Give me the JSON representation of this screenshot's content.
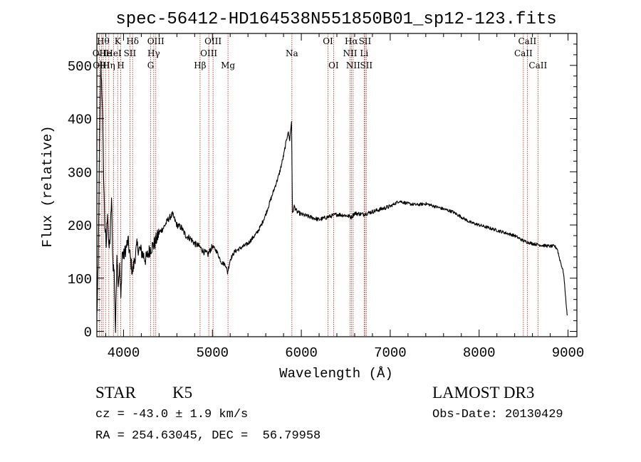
{
  "chart_data": {
    "type": "line",
    "title": "spec-56412-HD164538N551850B01_sp12-123.fits",
    "xlabel": "Wavelength (Å)",
    "ylabel": "Flux (relative)",
    "xlim": [
      3700,
      9100
    ],
    "ylim": [
      -10,
      560
    ],
    "xticks": [
      4000,
      5000,
      6000,
      7000,
      8000,
      9000
    ],
    "yticks": [
      0,
      100,
      200,
      300,
      400,
      500
    ],
    "x_minor_step": 200,
    "y_minor_step": 20,
    "series": [
      {
        "name": "spectrum",
        "x": [
          3700,
          3715,
          3730,
          3745,
          3760,
          3775,
          3790,
          3805,
          3820,
          3835,
          3850,
          3865,
          3880,
          3895,
          3910,
          3925,
          3940,
          3955,
          3970,
          3985,
          4000,
          4050,
          4100,
          4150,
          4200,
          4250,
          4300,
          4350,
          4400,
          4450,
          4500,
          4550,
          4600,
          4650,
          4700,
          4750,
          4800,
          4850,
          4900,
          4950,
          5000,
          5050,
          5100,
          5150,
          5170,
          5200,
          5250,
          5300,
          5350,
          5400,
          5450,
          5500,
          5550,
          5600,
          5650,
          5700,
          5750,
          5800,
          5850,
          5870,
          5890,
          5900,
          5920,
          5950,
          6000,
          6100,
          6200,
          6300,
          6400,
          6500,
          6563,
          6600,
          6700,
          6800,
          6900,
          7000,
          7100,
          7200,
          7300,
          7400,
          7500,
          7600,
          7700,
          7800,
          7900,
          8000,
          8100,
          8200,
          8300,
          8400,
          8500,
          8600,
          8700,
          8800,
          8850,
          8880,
          8900,
          8950,
          8990
        ],
        "y": [
          30,
          120,
          350,
          500,
          440,
          300,
          200,
          160,
          230,
          150,
          180,
          250,
          130,
          110,
          0,
          150,
          90,
          120,
          60,
          150,
          140,
          170,
          110,
          160,
          150,
          135,
          155,
          165,
          185,
          195,
          210,
          220,
          200,
          195,
          180,
          175,
          165,
          160,
          150,
          145,
          160,
          150,
          130,
          125,
          110,
          135,
          150,
          155,
          160,
          165,
          175,
          185,
          200,
          220,
          245,
          270,
          295,
          330,
          375,
          360,
          395,
          220,
          235,
          225,
          220,
          215,
          210,
          215,
          220,
          218,
          215,
          222,
          220,
          225,
          230,
          235,
          245,
          240,
          238,
          240,
          235,
          230,
          225,
          215,
          205,
          200,
          195,
          190,
          185,
          180,
          170,
          165,
          162,
          160,
          160,
          155,
          140,
          110,
          30
        ]
      }
    ],
    "reference_lines": [
      {
        "x": 3727,
        "label": "OII",
        "row": 1
      },
      {
        "x": 3750,
        "label": "OIII",
        "row": 2
      },
      {
        "x": 3771,
        "label": "Hθ",
        "row": 0
      },
      {
        "x": 3798,
        "label": "He",
        "row": 1
      },
      {
        "x": 3835,
        "label": "Hη",
        "row": 2
      },
      {
        "x": 3889,
        "label": "HeI",
        "row": 1
      },
      {
        "x": 3934,
        "label": "K",
        "row": 0
      },
      {
        "x": 3969,
        "label": "H",
        "row": 2
      },
      {
        "x": 4072,
        "label": "SII",
        "row": 1
      },
      {
        "x": 4102,
        "label": "Hδ",
        "row": 0
      },
      {
        "x": 4305,
        "label": "G",
        "row": 2
      },
      {
        "x": 4340,
        "label": "Hγ",
        "row": 1
      },
      {
        "x": 4363,
        "label": "OIII",
        "row": 0
      },
      {
        "x": 4861,
        "label": "Hβ",
        "row": 2
      },
      {
        "x": 4959,
        "label": "OIII",
        "row": 1
      },
      {
        "x": 5007,
        "label": "OIII",
        "row": 0
      },
      {
        "x": 5175,
        "label": "Mg",
        "row": 2
      },
      {
        "x": 5894,
        "label": "Na",
        "row": 1
      },
      {
        "x": 6300,
        "label": "OI",
        "row": 0
      },
      {
        "x": 6363,
        "label": "OI",
        "row": 2
      },
      {
        "x": 6548,
        "label": "NII",
        "row": 1
      },
      {
        "x": 6563,
        "label": "Hα",
        "row": 0
      },
      {
        "x": 6583,
        "label": "NII",
        "row": 2
      },
      {
        "x": 6707,
        "label": "Li",
        "row": 1
      },
      {
        "x": 6716,
        "label": "SII",
        "row": 0
      },
      {
        "x": 6731,
        "label": "SII",
        "row": 2
      },
      {
        "x": 8498,
        "label": "CaII",
        "row": 1
      },
      {
        "x": 8542,
        "label": "CaII",
        "row": 0
      },
      {
        "x": 8662,
        "label": "CaII",
        "row": 2
      }
    ]
  },
  "info": {
    "object_class": "STAR",
    "subclass": "K5",
    "survey": "LAMOST DR3",
    "redshift": "cz = -43.0 ± 1.9 km/s",
    "obs_date": "Obs-Date: 20130429",
    "coords": "RA = 254.63045, DEC =  56.79958"
  },
  "colors": {
    "spectrum": "#000000",
    "reference_line": "#b22222",
    "axes": "#000000"
  }
}
